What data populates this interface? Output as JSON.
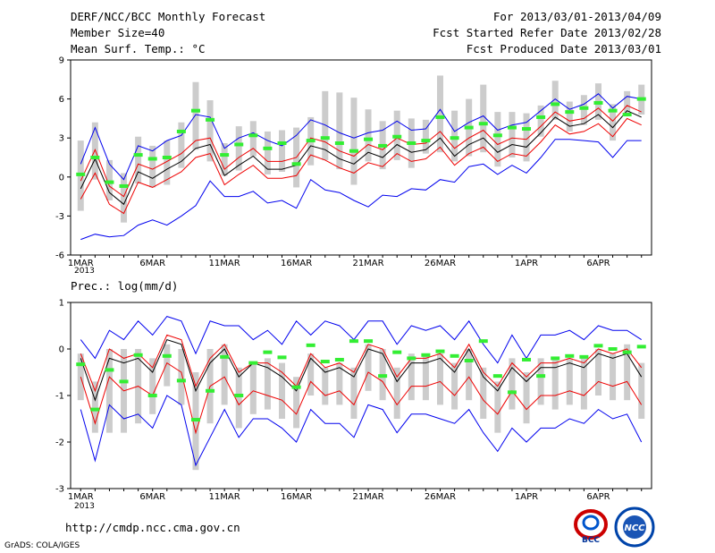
{
  "header": {
    "title": "DERF/NCC/BCC Monthly Forecast",
    "member_size": "Member Size=40",
    "variable": "Mean Surf. Temp.: °C",
    "period": "For 2013/03/01-2013/04/09",
    "refer_date": "Fcst Started Refer Date 2013/02/28",
    "produced_date": "Fcst Produced Date 2013/03/01"
  },
  "footer": {
    "url": "http://cmdp.ncc.cma.gov.cn",
    "credit": "GrADS: COLA/IGES",
    "logo_bcc": "BCC",
    "logo_ncc": "NCC"
  },
  "colors": {
    "envelope": "#0000ee",
    "spread": "#ee0000",
    "mean": "#000000",
    "box": "#cccccc",
    "observed": "#33ee33"
  },
  "chart_data": [
    {
      "type": "line",
      "title": "Mean Surf. Temp.: °C",
      "x": [
        "1MAR",
        "2MAR",
        "3MAR",
        "4MAR",
        "5MAR",
        "6MAR",
        "7MAR",
        "8MAR",
        "9MAR",
        "10MAR",
        "11MAR",
        "12MAR",
        "13MAR",
        "14MAR",
        "15MAR",
        "16MAR",
        "17MAR",
        "18MAR",
        "19MAR",
        "20MAR",
        "21MAR",
        "22MAR",
        "23MAR",
        "24MAR",
        "25MAR",
        "26MAR",
        "27MAR",
        "28MAR",
        "29MAR",
        "30MAR",
        "31MAR",
        "1APR",
        "2APR",
        "3APR",
        "4APR",
        "5APR",
        "6APR",
        "7APR",
        "8APR",
        "9APR"
      ],
      "tick_labels": [
        "1MAR",
        "6MAR",
        "11MAR",
        "16MAR",
        "21MAR",
        "26MAR",
        "1APR",
        "6APR"
      ],
      "tick_index": [
        0,
        5,
        10,
        15,
        20,
        25,
        31,
        36
      ],
      "year_label": "2013",
      "ylim": [
        -6,
        9
      ],
      "yticks": [
        -6,
        -3,
        0,
        3,
        6,
        9
      ],
      "series": [
        {
          "name": "max",
          "values": [
            1,
            3.8,
            1,
            -0.2,
            2.4,
            2,
            2.8,
            3.2,
            4.8,
            4.6,
            2.2,
            3,
            3.4,
            2.8,
            2.4,
            3.2,
            4.4,
            4,
            3.4,
            3,
            3.4,
            3.6,
            4.3,
            3.6,
            3.7,
            5.2,
            3.5,
            4.2,
            4.7,
            3.6,
            4,
            4.2,
            5.1,
            6,
            5.2,
            5.6,
            6.4,
            5.3,
            6.2,
            6
          ]
        },
        {
          "name": "upper",
          "values": [
            -0.3,
            2.1,
            -0.7,
            -1.5,
            1,
            0.6,
            1.2,
            1.8,
            2.8,
            3,
            0.6,
            1.5,
            2.2,
            1.2,
            1.2,
            1.5,
            3,
            2.7,
            2,
            1.6,
            2.5,
            2.1,
            3,
            2.5,
            2.6,
            3.5,
            2.2,
            3,
            3.6,
            2.5,
            3,
            2.9,
            3.9,
            5,
            4.3,
            4.5,
            5.3,
            4.3,
            5.5,
            5
          ]
        },
        {
          "name": "mean",
          "values": [
            -0.9,
            1.4,
            -1.2,
            -2.1,
            0.4,
            -0.1,
            0.6,
            1.2,
            2.2,
            2.5,
            0.1,
            0.9,
            1.6,
            0.6,
            0.6,
            0.9,
            2.4,
            2.1,
            1.4,
            1,
            1.9,
            1.5,
            2.5,
            1.9,
            2.1,
            3,
            1.6,
            2.5,
            3,
            1.9,
            2.5,
            2.3,
            3.4,
            4.6,
            3.9,
            4.1,
            4.8,
            3.8,
            5.1,
            4.6
          ]
        },
        {
          "name": "lower",
          "values": [
            -1.7,
            0.3,
            -2.1,
            -2.8,
            -0.4,
            -0.8,
            -0.2,
            0.4,
            1.5,
            1.8,
            -0.6,
            0.2,
            0.9,
            -0.1,
            -0.1,
            0.1,
            1.7,
            1.3,
            0.7,
            0.3,
            1.1,
            0.8,
            1.8,
            1.2,
            1.4,
            2.3,
            0.9,
            1.8,
            2.3,
            1.2,
            1.8,
            1.6,
            2.7,
            4,
            3.3,
            3.5,
            4.1,
            3.1,
            4.5,
            4
          ]
        },
        {
          "name": "min",
          "values": [
            -4.8,
            -4.4,
            -4.6,
            -4.5,
            -3.7,
            -3.3,
            -3.7,
            -3,
            -2.2,
            -0.3,
            -1.5,
            -1.5,
            -1.1,
            -2,
            -1.8,
            -2.4,
            -0.2,
            -1,
            -1.2,
            -1.8,
            -2.3,
            -1.4,
            -1.5,
            -0.9,
            -1,
            -0.2,
            -0.4,
            0.8,
            1,
            0.2,
            0.9,
            0.3,
            1.5,
            2.9,
            2.9,
            2.8,
            2.7,
            1.5,
            2.8,
            2.8
          ]
        },
        {
          "name": "box_top",
          "values": [
            2.8,
            4.2,
            1.3,
            0.3,
            3.1,
            2.4,
            2.8,
            4.2,
            7.3,
            5.9,
            2.6,
            3.9,
            4.3,
            3.5,
            3.6,
            3.8,
            4.6,
            6.6,
            6.5,
            6.1,
            5.2,
            4.3,
            5.1,
            4.5,
            4.4,
            7.8,
            5.1,
            6,
            7.1,
            5,
            5,
            4.9,
            5.5,
            7.4,
            5.8,
            6.3,
            7.2,
            5.6,
            6.6,
            7.1
          ]
        },
        {
          "name": "box_bottom",
          "values": [
            -2.6,
            -0.2,
            -1.8,
            -3.5,
            -0.5,
            -0.8,
            -0.6,
            0.7,
            2.1,
            1.2,
            0.1,
            0.5,
            1.6,
            0.2,
            0.4,
            -0.8,
            0.9,
            1.3,
            0.6,
            -0.6,
            1.2,
            0.6,
            1.3,
            0.7,
            1.8,
            1.9,
            1.2,
            1.6,
            1.9,
            0.8,
            1.5,
            1.2,
            3.1,
            4.4,
            3.5,
            4,
            4.4,
            2.8,
            4.7,
            4.8
          ]
        },
        {
          "name": "observed",
          "values": [
            0.2,
            1.5,
            -0.4,
            -0.7,
            1.7,
            1.4,
            1.5,
            3.5,
            5.1,
            4.4,
            1.7,
            2.5,
            3.2,
            2.2,
            2.6,
            1,
            2.8,
            3,
            2.6,
            2,
            2.9,
            2.4,
            3.1,
            2.6,
            2.8,
            4.6,
            3,
            3.8,
            4.1,
            3.2,
            3.8,
            3.7,
            4.6,
            5.6,
            5,
            5.3,
            5.7,
            5.1,
            4.8,
            6
          ]
        }
      ]
    },
    {
      "type": "line",
      "title": "Prec.: log(mm/d)",
      "x": [
        "1MAR",
        "2MAR",
        "3MAR",
        "4MAR",
        "5MAR",
        "6MAR",
        "7MAR",
        "8MAR",
        "9MAR",
        "10MAR",
        "11MAR",
        "12MAR",
        "13MAR",
        "14MAR",
        "15MAR",
        "16MAR",
        "17MAR",
        "18MAR",
        "19MAR",
        "20MAR",
        "21MAR",
        "22MAR",
        "23MAR",
        "24MAR",
        "25MAR",
        "26MAR",
        "27MAR",
        "28MAR",
        "29MAR",
        "30MAR",
        "31MAR",
        "1APR",
        "2APR",
        "3APR",
        "4APR",
        "5APR",
        "6APR",
        "7APR",
        "8APR",
        "9APR"
      ],
      "tick_labels": [
        "1MAR",
        "6MAR",
        "11MAR",
        "16MAR",
        "21MAR",
        "26MAR",
        "1APR",
        "6APR"
      ],
      "tick_index": [
        0,
        5,
        10,
        15,
        20,
        25,
        31,
        36
      ],
      "year_label": "2013",
      "ylim": [
        -3,
        1
      ],
      "yticks": [
        -3,
        -2,
        -1,
        0,
        1
      ],
      "series": [
        {
          "name": "max",
          "values": [
            0.2,
            -0.2,
            0.4,
            0.2,
            0.6,
            0.3,
            0.7,
            0.6,
            -0.1,
            0.6,
            0.5,
            0.5,
            0.2,
            0.4,
            0.1,
            0.6,
            0.3,
            0.6,
            0.5,
            0.2,
            0.6,
            0.6,
            0.1,
            0.5,
            0.4,
            0.5,
            0.2,
            0.6,
            0.1,
            -0.3,
            0.3,
            -0.2,
            0.3,
            0.3,
            0.4,
            0.2,
            0.5,
            0.4,
            0.4,
            0.2
          ]
        },
        {
          "name": "upper",
          "values": [
            -0.1,
            -0.9,
            0,
            -0.2,
            -0.1,
            -0.4,
            0.3,
            0.2,
            -0.8,
            -0.2,
            0.1,
            -0.5,
            -0.3,
            -0.3,
            -0.5,
            -0.8,
            -0.1,
            -0.4,
            -0.3,
            -0.5,
            0.1,
            0,
            -0.6,
            -0.2,
            -0.2,
            -0.1,
            -0.4,
            0.1,
            -0.5,
            -0.8,
            -0.3,
            -0.6,
            -0.3,
            -0.3,
            -0.2,
            -0.3,
            0,
            -0.1,
            0,
            -0.4
          ]
        },
        {
          "name": "mean",
          "values": [
            -0.2,
            -1.1,
            -0.2,
            -0.3,
            -0.2,
            -0.5,
            0.2,
            0.1,
            -0.9,
            -0.3,
            0,
            -0.6,
            -0.3,
            -0.4,
            -0.6,
            -0.9,
            -0.2,
            -0.5,
            -0.4,
            -0.6,
            0,
            -0.1,
            -0.7,
            -0.3,
            -0.3,
            -0.2,
            -0.5,
            0,
            -0.6,
            -0.9,
            -0.4,
            -0.7,
            -0.4,
            -0.4,
            -0.3,
            -0.4,
            -0.1,
            -0.2,
            -0.1,
            -0.6
          ]
        },
        {
          "name": "lower",
          "values": [
            -0.6,
            -1.6,
            -0.6,
            -0.9,
            -0.8,
            -1,
            -0.3,
            -0.5,
            -1.8,
            -0.8,
            -0.6,
            -1.2,
            -0.9,
            -1,
            -1.1,
            -1.4,
            -0.7,
            -1,
            -0.9,
            -1.2,
            -0.5,
            -0.7,
            -1.2,
            -0.8,
            -0.8,
            -0.7,
            -1,
            -0.6,
            -1.1,
            -1.4,
            -0.9,
            -1.3,
            -1,
            -1,
            -0.9,
            -1,
            -0.7,
            -0.8,
            -0.7,
            -1.2
          ]
        },
        {
          "name": "min",
          "values": [
            -1.3,
            -2.4,
            -1.2,
            -1.5,
            -1.4,
            -1.7,
            -1,
            -1.2,
            -2.5,
            -1.9,
            -1.3,
            -1.9,
            -1.5,
            -1.5,
            -1.7,
            -2,
            -1.3,
            -1.6,
            -1.6,
            -1.9,
            -1.2,
            -1.3,
            -1.8,
            -1.4,
            -1.4,
            -1.5,
            -1.6,
            -1.3,
            -1.8,
            -2.2,
            -1.7,
            -2,
            -1.7,
            -1.7,
            -1.5,
            -1.6,
            -1.3,
            -1.5,
            -1.4,
            -2
          ]
        },
        {
          "name": "box_top",
          "values": [
            -0.1,
            -0.7,
            0,
            0,
            0,
            -0.2,
            0.1,
            0,
            -0.5,
            0,
            0.1,
            -0.4,
            -0.3,
            -0.2,
            -0.3,
            -0.6,
            -0.1,
            -0.4,
            -0.3,
            -0.4,
            0.1,
            0,
            -0.4,
            -0.1,
            -0.1,
            -0.1,
            -0.3,
            0,
            -0.4,
            -0.7,
            -0.2,
            -0.5,
            -0.2,
            -0.2,
            -0.2,
            -0.2,
            0,
            -0.1,
            0.1,
            -0.3
          ]
        },
        {
          "name": "box_bottom",
          "values": [
            -1.1,
            -1.8,
            -1.8,
            -1.8,
            -1.6,
            -1.4,
            -0.8,
            -1.2,
            -2.6,
            -1.6,
            -1.2,
            -1.7,
            -1.4,
            -1.3,
            -1.5,
            -1.7,
            -1,
            -1.2,
            -1.2,
            -1.5,
            -0.9,
            -1.1,
            -1.5,
            -1.1,
            -1.1,
            -1.2,
            -1.3,
            -1.1,
            -1.5,
            -1.8,
            -1.3,
            -1.6,
            -1.2,
            -1.3,
            -1.2,
            -1.3,
            -1,
            -1.1,
            -1.1,
            -1.5
          ]
        },
        {
          "name": "observed",
          "values": [
            -0.33,
            -1.3,
            -0.45,
            -0.7,
            -0.13,
            -1,
            -0.15,
            -0.68,
            -1.52,
            -0.9,
            -0.17,
            -1,
            -0.3,
            -0.07,
            -0.18,
            -0.82,
            0.08,
            -0.27,
            -0.23,
            0.17,
            0.17,
            -0.58,
            -0.07,
            -0.2,
            -0.13,
            -0.05,
            -0.15,
            -0.25,
            0.17,
            -0.58,
            -0.93,
            -0.23,
            -0.58,
            -0.2,
            -0.15,
            -0.17,
            0.07,
            0,
            -0.07,
            0.05
          ]
        }
      ]
    }
  ]
}
